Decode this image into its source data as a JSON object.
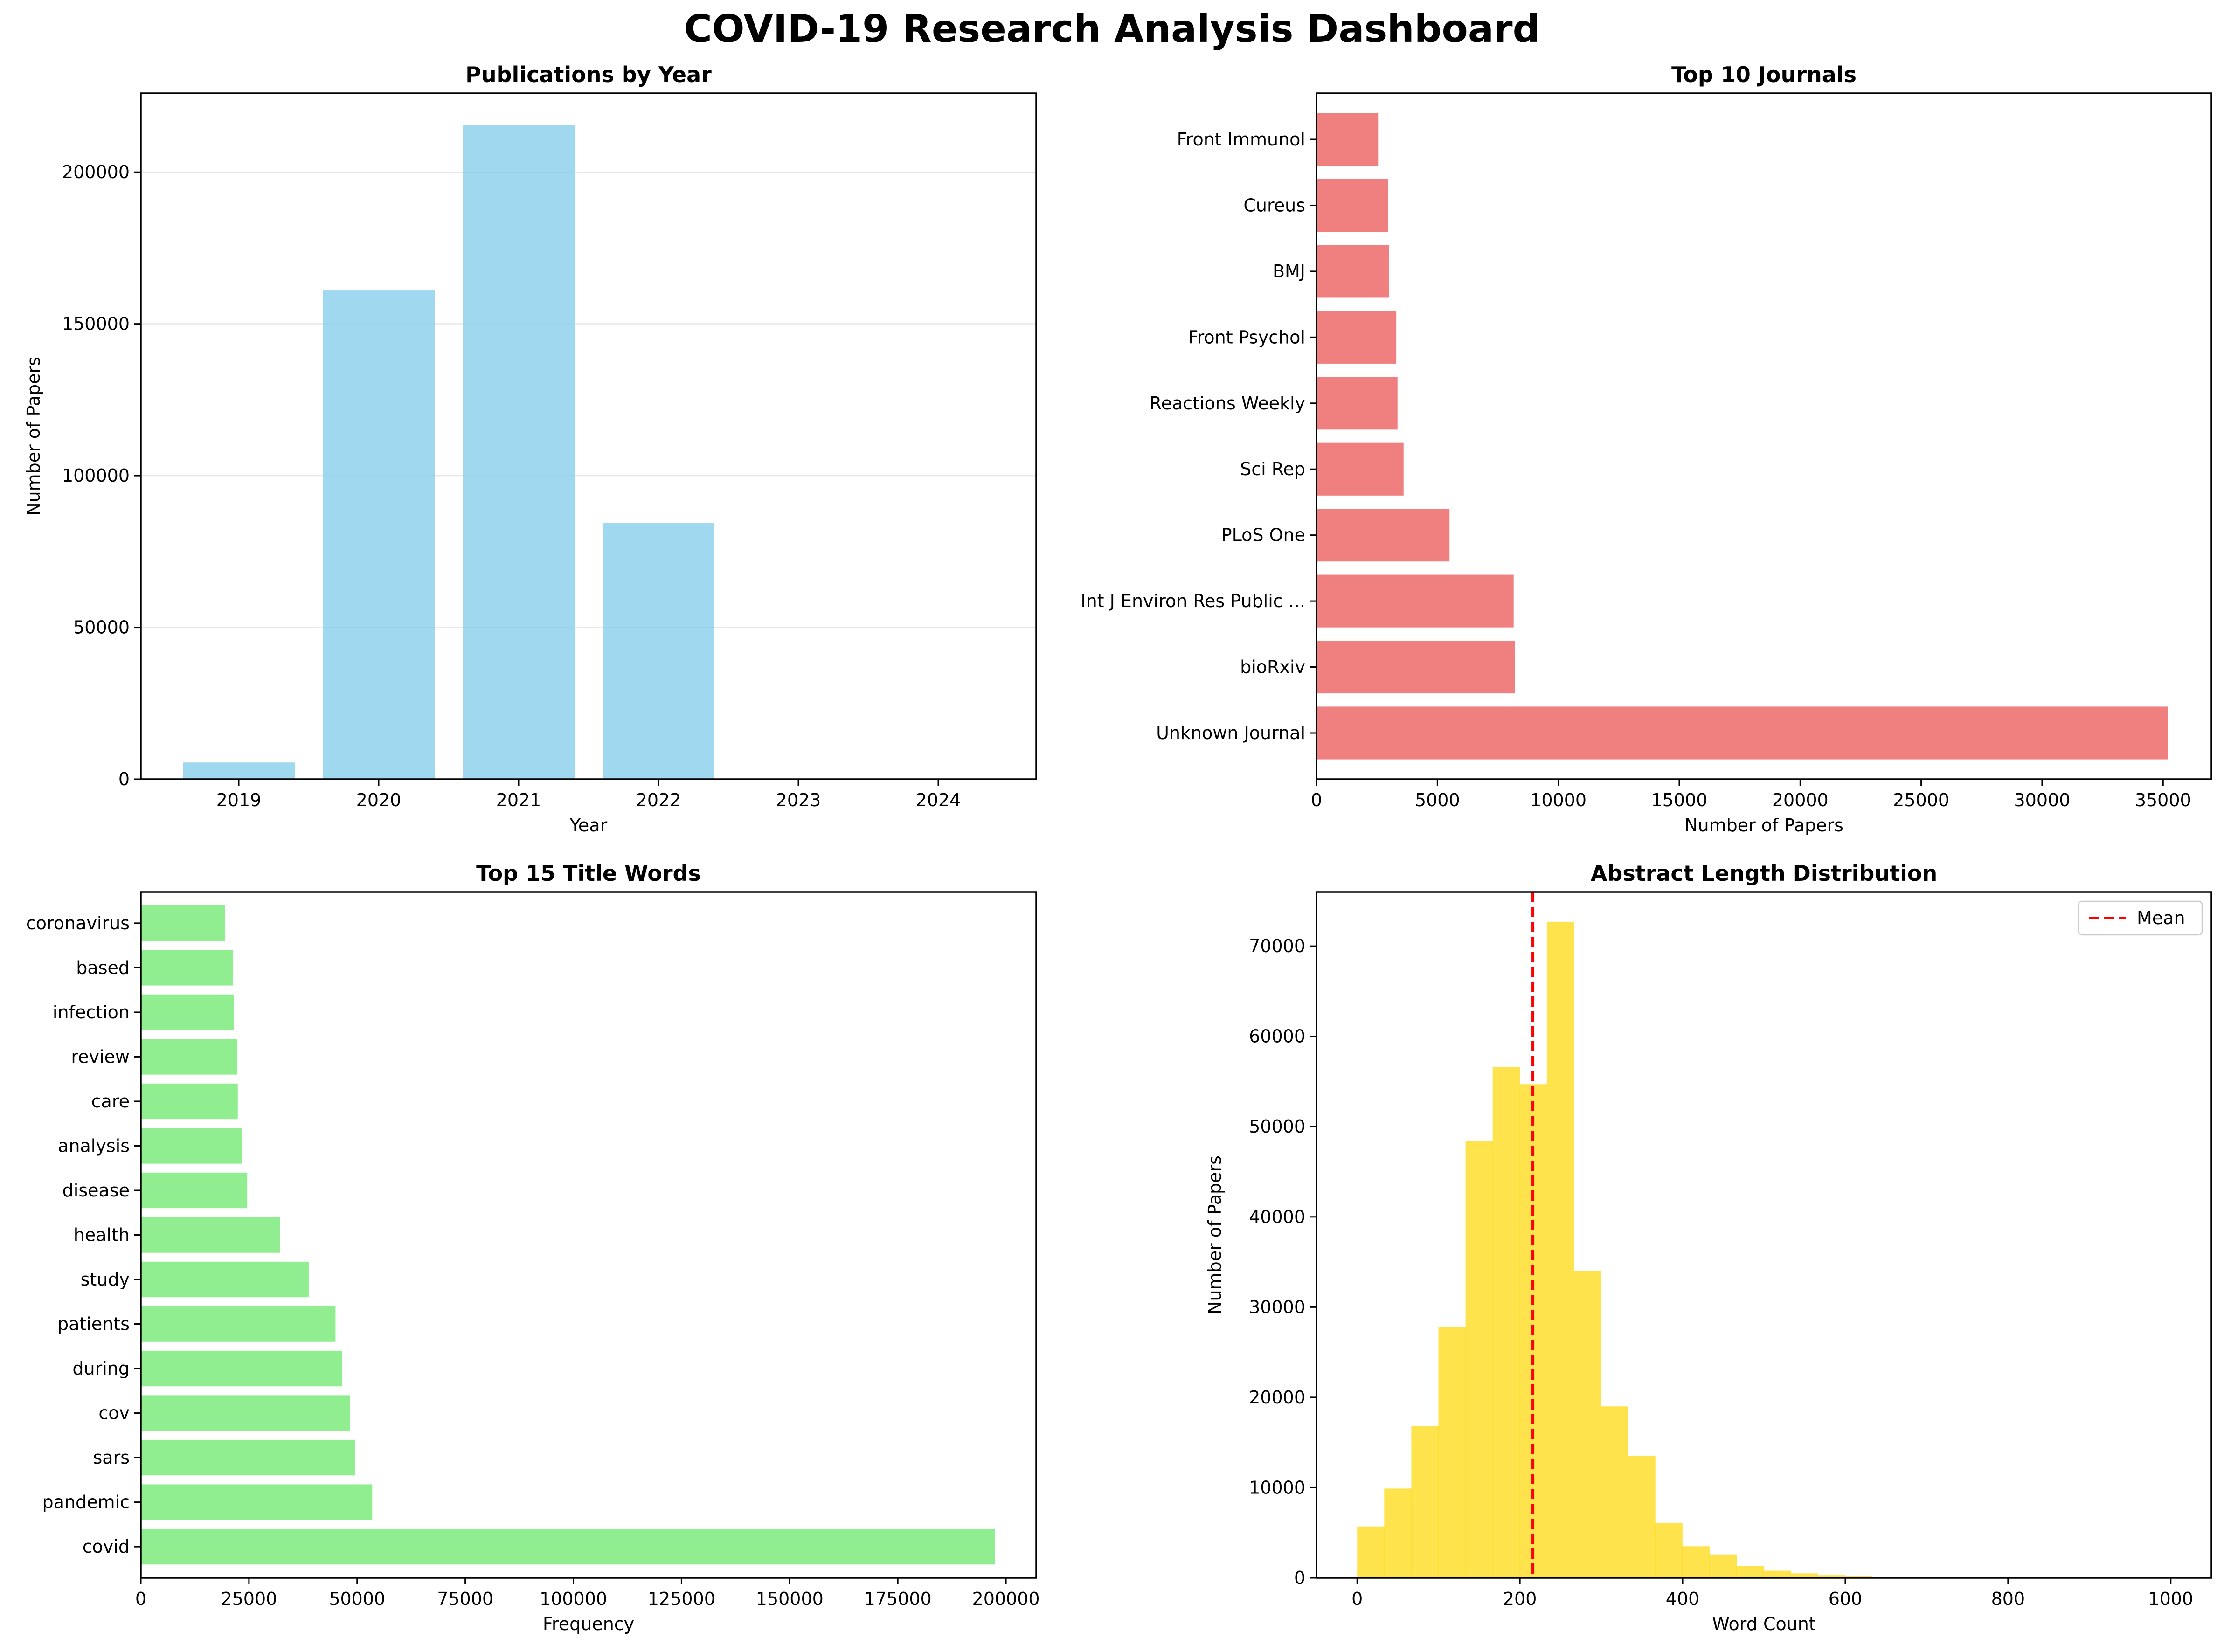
{
  "suptitle": "COVID-19 Research Analysis Dashboard",
  "chart_data": [
    {
      "type": "bar",
      "title": "Publications by Year",
      "xlabel": "Year",
      "ylabel": "Number of Papers",
      "categories": [
        "2019",
        "2020",
        "2021",
        "2022",
        "2023",
        "2024"
      ],
      "values": [
        5500,
        161000,
        215500,
        84500,
        0,
        0
      ],
      "ylim": [
        0,
        226000
      ],
      "yticks": [
        0,
        50000,
        100000,
        150000,
        200000
      ],
      "grid": "y",
      "color": "#87ceeb"
    },
    {
      "type": "bar",
      "orientation": "horizontal",
      "title": "Top 10 Journals",
      "xlabel": "Number of Papers",
      "categories": [
        "Unknown Journal",
        "bioRxiv",
        "Int J Environ Res Public ...",
        "PLoS One",
        "Sci Rep",
        "Reactions Weekly",
        "Front Psychol",
        "BMJ",
        "Cureus",
        "Front Immunol"
      ],
      "values": [
        35200,
        8200,
        8150,
        5500,
        3600,
        3350,
        3300,
        3000,
        2950,
        2550
      ],
      "xlim": [
        0,
        37000
      ],
      "xticks": [
        0,
        5000,
        10000,
        15000,
        20000,
        25000,
        30000,
        35000
      ],
      "color": "#f08080"
    },
    {
      "type": "bar",
      "orientation": "horizontal",
      "title": "Top 15 Title Words",
      "xlabel": "Frequency",
      "categories": [
        "covid",
        "pandemic",
        "sars",
        "cov",
        "during",
        "patients",
        "study",
        "health",
        "disease",
        "analysis",
        "care",
        "review",
        "infection",
        "based",
        "coronavirus"
      ],
      "values": [
        197500,
        53500,
        49500,
        48300,
        46500,
        45000,
        38800,
        32200,
        24600,
        23300,
        22400,
        22300,
        21500,
        21300,
        19500
      ],
      "xlim": [
        0,
        207000
      ],
      "xticks": [
        0,
        25000,
        50000,
        75000,
        100000,
        125000,
        150000,
        175000,
        200000
      ],
      "color": "#90ee90"
    },
    {
      "type": "histogram",
      "title": "Abstract Length Distribution",
      "xlabel": "Word Count",
      "ylabel": "Number of Papers",
      "bin_width": 33.3,
      "bin_start": 0,
      "counts": [
        5700,
        9900,
        16800,
        27800,
        48400,
        56600,
        54700,
        72700,
        34000,
        19000,
        13500,
        6100,
        3500,
        2600,
        1300,
        800,
        500,
        300,
        200,
        100,
        100,
        50,
        30,
        20,
        10,
        5,
        5,
        5,
        5,
        5
      ],
      "xlim": [
        -50,
        1050
      ],
      "ylim": [
        0,
        76000
      ],
      "xticks": [
        0,
        200,
        400,
        600,
        800,
        1000
      ],
      "yticks": [
        0,
        10000,
        20000,
        30000,
        40000,
        50000,
        60000,
        70000
      ],
      "mean": 216,
      "legend": [
        {
          "label": "Mean",
          "style": "dashed",
          "color": "#ff0000"
        }
      ],
      "legend_position": "top-right",
      "color": "#ffd700"
    }
  ]
}
